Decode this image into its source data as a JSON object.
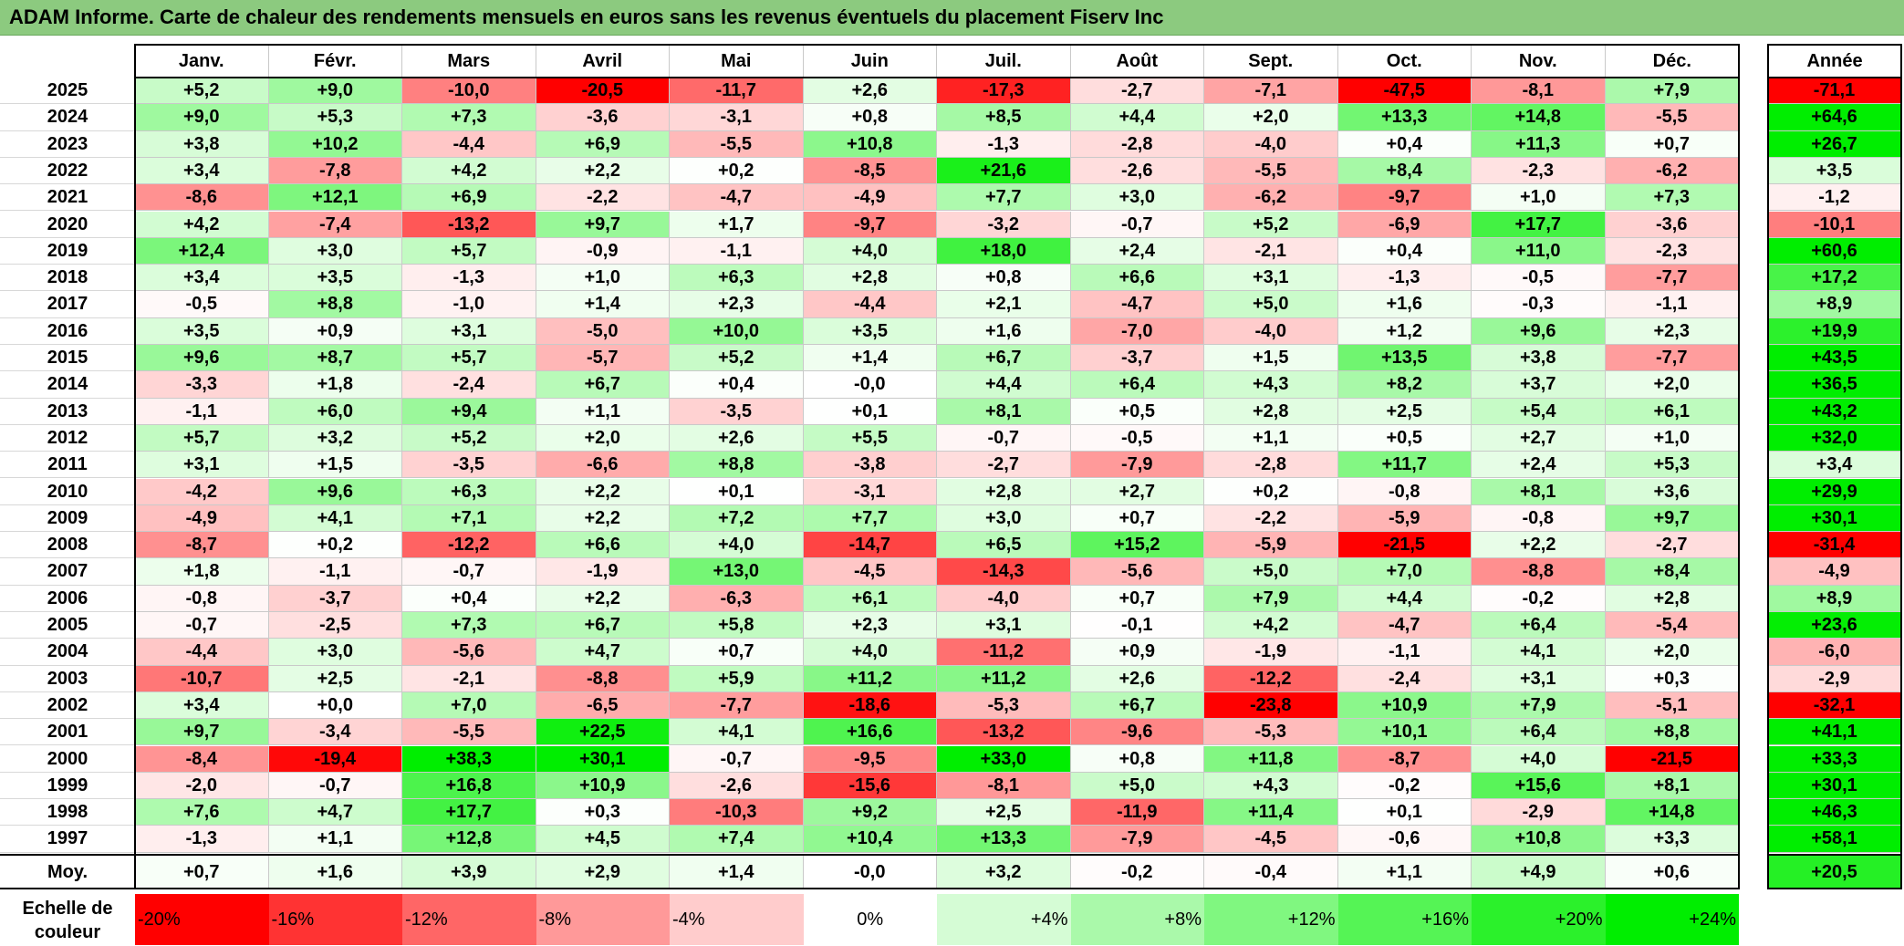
{
  "title": "ADAM Informe. Carte de chaleur des rendements mensuels en euros sans les revenus éventuels du placement Fiserv Inc",
  "chart_data": {
    "type": "heatmap",
    "title": "ADAM Informe. Carte de chaleur des rendements mensuels en euros sans les revenus éventuels du placement Fiserv Inc",
    "columns": [
      "Janv.",
      "Févr.",
      "Mars",
      "Avril",
      "Mai",
      "Juin",
      "Juil.",
      "Août",
      "Sept.",
      "Oct.",
      "Nov.",
      "Déc."
    ],
    "year_column_label": "Année",
    "rows": [
      {
        "year": "2025",
        "values": [
          "+5,2",
          "+9,0",
          "-10,0",
          "-20,5",
          "-11,7",
          "+2,6",
          "-17,3",
          "-2,7",
          "-7,1",
          "-47,5",
          "-8,1",
          "+7,9"
        ],
        "annual": "-71,1"
      },
      {
        "year": "2024",
        "values": [
          "+9,0",
          "+5,3",
          "+7,3",
          "-3,6",
          "-3,1",
          "+0,8",
          "+8,5",
          "+4,4",
          "+2,0",
          "+13,3",
          "+14,8",
          "-5,5"
        ],
        "annual": "+64,6"
      },
      {
        "year": "2023",
        "values": [
          "+3,8",
          "+10,2",
          "-4,4",
          "+6,9",
          "-5,5",
          "+10,8",
          "-1,3",
          "-2,8",
          "-4,0",
          "+0,4",
          "+11,3",
          "+0,7"
        ],
        "annual": "+26,7"
      },
      {
        "year": "2022",
        "values": [
          "+3,4",
          "-7,8",
          "+4,2",
          "+2,2",
          "+0,2",
          "-8,5",
          "+21,6",
          "-2,6",
          "-5,5",
          "+8,4",
          "-2,3",
          "-6,2"
        ],
        "annual": "+3,5"
      },
      {
        "year": "2021",
        "values": [
          "-8,6",
          "+12,1",
          "+6,9",
          "-2,2",
          "-4,7",
          "-4,9",
          "+7,7",
          "+3,0",
          "-6,2",
          "-9,7",
          "+1,0",
          "+7,3"
        ],
        "annual": "-1,2"
      },
      {
        "year": "2020",
        "values": [
          "+4,2",
          "-7,4",
          "-13,2",
          "+9,7",
          "+1,7",
          "-9,7",
          "-3,2",
          "-0,7",
          "+5,2",
          "-6,9",
          "+17,7",
          "-3,6"
        ],
        "annual": "-10,1"
      },
      {
        "year": "2019",
        "values": [
          "+12,4",
          "+3,0",
          "+5,7",
          "-0,9",
          "-1,1",
          "+4,0",
          "+18,0",
          "+2,4",
          "-2,1",
          "+0,4",
          "+11,0",
          "-2,3"
        ],
        "annual": "+60,6"
      },
      {
        "year": "2018",
        "values": [
          "+3,4",
          "+3,5",
          "-1,3",
          "+1,0",
          "+6,3",
          "+2,8",
          "+0,8",
          "+6,6",
          "+3,1",
          "-1,3",
          "-0,5",
          "-7,7"
        ],
        "annual": "+17,2"
      },
      {
        "year": "2017",
        "values": [
          "-0,5",
          "+8,8",
          "-1,0",
          "+1,4",
          "+2,3",
          "-4,4",
          "+2,1",
          "-4,7",
          "+5,0",
          "+1,6",
          "-0,3",
          "-1,1"
        ],
        "annual": "+8,9"
      },
      {
        "year": "2016",
        "values": [
          "+3,5",
          "+0,9",
          "+3,1",
          "-5,0",
          "+10,0",
          "+3,5",
          "+1,6",
          "-7,0",
          "-4,0",
          "+1,2",
          "+9,6",
          "+2,3"
        ],
        "annual": "+19,9"
      },
      {
        "year": "2015",
        "values": [
          "+9,6",
          "+8,7",
          "+5,7",
          "-5,7",
          "+5,2",
          "+1,4",
          "+6,7",
          "-3,7",
          "+1,5",
          "+13,5",
          "+3,8",
          "-7,7"
        ],
        "annual": "+43,5"
      },
      {
        "year": "2014",
        "values": [
          "-3,3",
          "+1,8",
          "-2,4",
          "+6,7",
          "+0,4",
          "-0,0",
          "+4,4",
          "+6,4",
          "+4,3",
          "+8,2",
          "+3,7",
          "+2,0"
        ],
        "annual": "+36,5"
      },
      {
        "year": "2013",
        "values": [
          "-1,1",
          "+6,0",
          "+9,4",
          "+1,1",
          "-3,5",
          "+0,1",
          "+8,1",
          "+0,5",
          "+2,8",
          "+2,5",
          "+5,4",
          "+6,1"
        ],
        "annual": "+43,2"
      },
      {
        "year": "2012",
        "values": [
          "+5,7",
          "+3,2",
          "+5,2",
          "+2,0",
          "+2,6",
          "+5,5",
          "-0,7",
          "-0,5",
          "+1,1",
          "+0,5",
          "+2,7",
          "+1,0"
        ],
        "annual": "+32,0"
      },
      {
        "year": "2011",
        "values": [
          "+3,1",
          "+1,5",
          "-3,5",
          "-6,6",
          "+8,8",
          "-3,8",
          "-2,7",
          "-7,9",
          "-2,8",
          "+11,7",
          "+2,4",
          "+5,3"
        ],
        "annual": "+3,4"
      },
      {
        "year": "2010",
        "values": [
          "-4,2",
          "+9,6",
          "+6,3",
          "+2,2",
          "+0,1",
          "-3,1",
          "+2,8",
          "+2,7",
          "+0,2",
          "-0,8",
          "+8,1",
          "+3,6"
        ],
        "annual": "+29,9"
      },
      {
        "year": "2009",
        "values": [
          "-4,9",
          "+4,1",
          "+7,1",
          "+2,2",
          "+7,2",
          "+7,7",
          "+3,0",
          "+0,7",
          "-2,2",
          "-5,9",
          "-0,8",
          "+9,7"
        ],
        "annual": "+30,1"
      },
      {
        "year": "2008",
        "values": [
          "-8,7",
          "+0,2",
          "-12,2",
          "+6,6",
          "+4,0",
          "-14,7",
          "+6,5",
          "+15,2",
          "-5,9",
          "-21,5",
          "+2,2",
          "-2,7"
        ],
        "annual": "-31,4"
      },
      {
        "year": "2007",
        "values": [
          "+1,8",
          "-1,1",
          "-0,7",
          "-1,9",
          "+13,0",
          "-4,5",
          "-14,3",
          "-5,6",
          "+5,0",
          "+7,0",
          "-8,8",
          "+8,4"
        ],
        "annual": "-4,9"
      },
      {
        "year": "2006",
        "values": [
          "-0,8",
          "-3,7",
          "+0,4",
          "+2,2",
          "-6,3",
          "+6,1",
          "-4,0",
          "+0,7",
          "+7,9",
          "+4,4",
          "-0,2",
          "+2,8"
        ],
        "annual": "+8,9"
      },
      {
        "year": "2005",
        "values": [
          "-0,7",
          "-2,5",
          "+7,3",
          "+6,7",
          "+5,8",
          "+2,3",
          "+3,1",
          "-0,1",
          "+4,2",
          "-4,7",
          "+6,4",
          "-5,4"
        ],
        "annual": "+23,6"
      },
      {
        "year": "2004",
        "values": [
          "-4,4",
          "+3,0",
          "-5,6",
          "+4,7",
          "+0,7",
          "+4,0",
          "-11,2",
          "+0,9",
          "-1,9",
          "-1,1",
          "+4,1",
          "+2,0"
        ],
        "annual": "-6,0"
      },
      {
        "year": "2003",
        "values": [
          "-10,7",
          "+2,5",
          "-2,1",
          "-8,8",
          "+5,9",
          "+11,2",
          "+11,2",
          "+2,6",
          "-12,2",
          "-2,4",
          "+3,1",
          "+0,3"
        ],
        "annual": "-2,9"
      },
      {
        "year": "2002",
        "values": [
          "+3,4",
          "+0,0",
          "+7,0",
          "-6,5",
          "-7,7",
          "-18,6",
          "-5,3",
          "+6,7",
          "-23,8",
          "+10,9",
          "+7,9",
          "-5,1"
        ],
        "annual": "-32,1"
      },
      {
        "year": "2001",
        "values": [
          "+9,7",
          "-3,4",
          "-5,5",
          "+22,5",
          "+4,1",
          "+16,6",
          "-13,2",
          "-9,6",
          "-5,3",
          "+10,1",
          "+6,4",
          "+8,8"
        ],
        "annual": "+41,1"
      },
      {
        "year": "2000",
        "values": [
          "-8,4",
          "-19,4",
          "+38,3",
          "+30,1",
          "-0,7",
          "-9,5",
          "+33,0",
          "+0,8",
          "+11,8",
          "-8,7",
          "+4,0",
          "-21,5"
        ],
        "annual": "+33,3"
      },
      {
        "year": "1999",
        "values": [
          "-2,0",
          "-0,7",
          "+16,8",
          "+10,9",
          "-2,6",
          "-15,6",
          "-8,1",
          "+5,0",
          "+4,3",
          "-0,2",
          "+15,6",
          "+8,1"
        ],
        "annual": "+30,1"
      },
      {
        "year": "1998",
        "values": [
          "+7,6",
          "+4,7",
          "+17,7",
          "+0,3",
          "-10,3",
          "+9,2",
          "+2,5",
          "-11,9",
          "+11,4",
          "+0,1",
          "-2,9",
          "+14,8"
        ],
        "annual": "+46,3"
      },
      {
        "year": "1997",
        "values": [
          "-1,3",
          "+1,1",
          "+12,8",
          "+4,5",
          "+7,4",
          "+10,4",
          "+13,3",
          "-7,9",
          "-4,5",
          "-0,6",
          "+10,8",
          "+3,3"
        ],
        "annual": "+58,1"
      }
    ],
    "average_label": "Moy.",
    "average_values": [
      "+0,7",
      "+1,6",
      "+3,9",
      "+2,9",
      "+1,4",
      "-0,0",
      "+3,2",
      "-0,2",
      "-0,4",
      "+1,1",
      "+4,9",
      "+0,6"
    ],
    "average_annual": "+20,5",
    "scale_label": "Echelle de couleur",
    "scale": [
      {
        "label": "-20%",
        "value": -20
      },
      {
        "label": "-16%",
        "value": -16
      },
      {
        "label": "-12%",
        "value": -12
      },
      {
        "label": "-8%",
        "value": -8
      },
      {
        "label": "-4%",
        "value": -4
      },
      {
        "label": "0%",
        "value": 0
      },
      {
        "label": "+4%",
        "value": 4
      },
      {
        "label": "+8%",
        "value": 8
      },
      {
        "label": "+12%",
        "value": 12
      },
      {
        "label": "+16%",
        "value": 16
      },
      {
        "label": "+20%",
        "value": 20
      },
      {
        "label": "+24%",
        "value": 24
      }
    ],
    "colors": {
      "negative_max": "#ff0000",
      "zero": "#ffffff",
      "positive_max": "#00ee00"
    },
    "color_range": [
      -20,
      24
    ]
  }
}
